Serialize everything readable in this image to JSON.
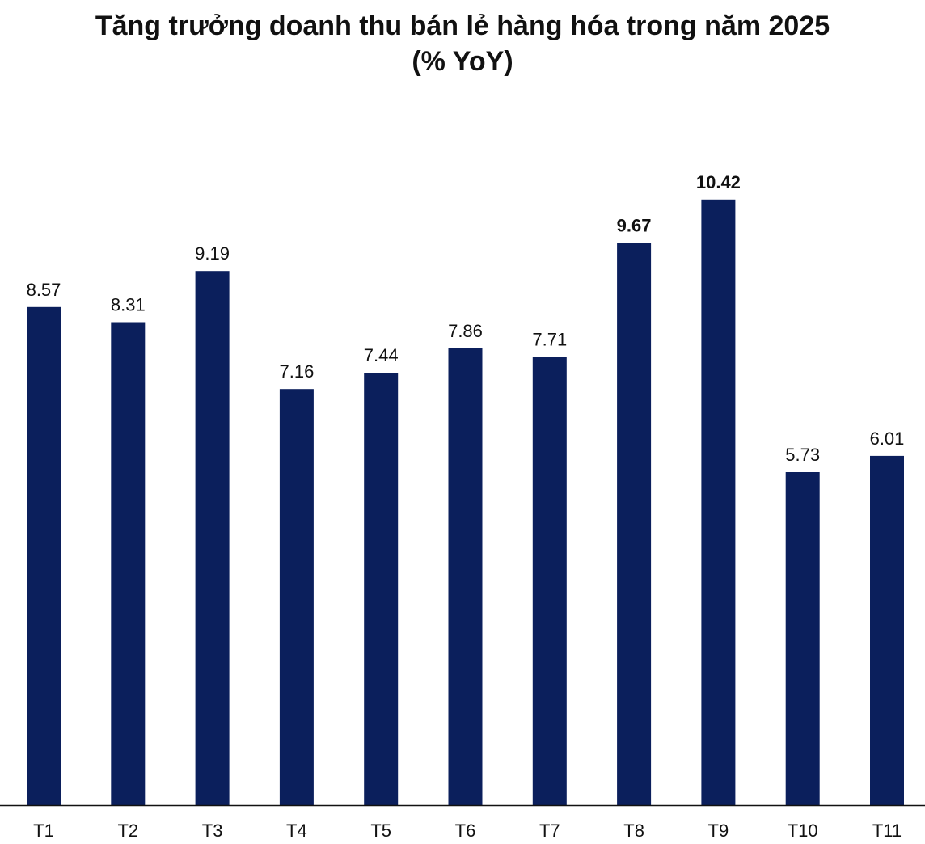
{
  "chart_data": {
    "type": "bar",
    "title": "Tăng trưởng doanh thu bán lẻ hàng hóa trong năm 2025",
    "subtitle": "(% YoY)",
    "categories": [
      "T1",
      "T2",
      "T3",
      "T4",
      "T5",
      "T6",
      "T7",
      "T8",
      "T9",
      "T10",
      "T11"
    ],
    "values": [
      8.57,
      8.31,
      9.19,
      7.16,
      7.44,
      7.86,
      7.71,
      9.67,
      10.42,
      5.73,
      6.01
    ],
    "value_labels": [
      "8.57",
      "8.31",
      "9.19",
      "7.16",
      "7.44",
      "7.86",
      "7.71",
      "9.67",
      "10.42",
      "5.73",
      "6.01"
    ],
    "bold_labels": [
      "T8",
      "T9"
    ],
    "ylim": [
      0,
      14
    ],
    "grid": false,
    "bar_color": "#0b1f5c",
    "axis_color": "#111111"
  }
}
